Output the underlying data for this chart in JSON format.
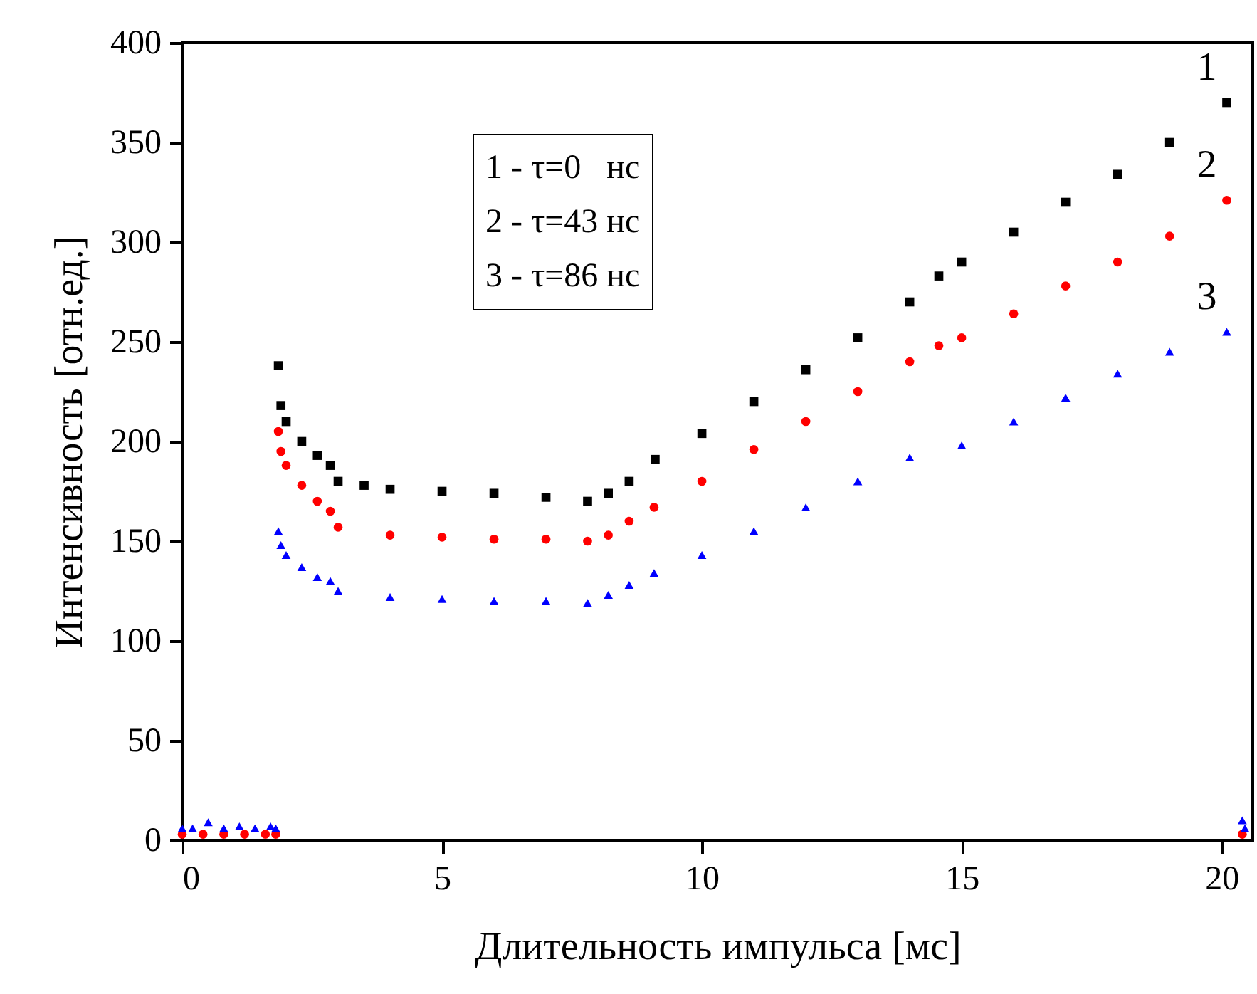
{
  "chart_data": {
    "type": "scatter",
    "xlabel": "Длительность импульса   [мс]",
    "ylabel": "Интенсивность    [отн.ед.]",
    "xlim": [
      0,
      20.6
    ],
    "ylim": [
      0,
      400
    ],
    "xticks": [
      0,
      5,
      10,
      15,
      20
    ],
    "yticks": [
      0,
      50,
      100,
      150,
      200,
      250,
      300,
      350,
      400
    ],
    "annotations": [
      "1 - τ=0   нс",
      "2 - τ=43 нс",
      "3 - τ=86 нс"
    ],
    "series": [
      {
        "name": "1",
        "color": "#000000",
        "marker": "square",
        "x": [
          1.85,
          1.9,
          2.0,
          2.3,
          2.6,
          2.85,
          3.0,
          3.5,
          4,
          5,
          6,
          7,
          7.8,
          8.2,
          8.6,
          9.1,
          10,
          11,
          12,
          13,
          14,
          14.56,
          15,
          16,
          17,
          18,
          19,
          20.1
        ],
        "values": [
          238,
          218,
          210,
          200,
          193,
          188,
          180,
          178,
          176,
          175,
          174,
          172,
          170,
          174,
          180,
          191,
          204,
          220,
          236,
          252,
          270,
          283,
          290,
          305,
          320,
          334,
          350,
          370
        ]
      },
      {
        "name": "2",
        "color": "#ff0000",
        "marker": "circle",
        "x": [
          0,
          0.4,
          0.8,
          1.2,
          1.6,
          1.8,
          1.85,
          1.9,
          2.0,
          2.3,
          2.6,
          2.85,
          3.0,
          4,
          5,
          6,
          7,
          7.8,
          8.2,
          8.6,
          9.08,
          10,
          11,
          12,
          13,
          14,
          14.56,
          15,
          16,
          17,
          18,
          19,
          20.1,
          20.4
        ],
        "values": [
          3,
          3,
          3,
          3,
          3,
          3,
          205,
          195,
          188,
          178,
          170,
          165,
          157,
          153,
          152,
          151,
          151,
          150,
          153,
          160,
          167,
          180,
          196,
          210,
          225,
          240,
          248,
          252,
          264,
          278,
          290,
          303,
          321,
          3
        ]
      },
      {
        "name": "3",
        "color": "#0000ff",
        "marker": "triangle",
        "x": [
          0,
          0.2,
          0.5,
          0.8,
          1.1,
          1.4,
          1.7,
          1.8,
          1.85,
          1.9,
          2.0,
          2.3,
          2.6,
          2.85,
          3.0,
          4,
          5,
          6,
          7,
          7.8,
          8.2,
          8.6,
          9.08,
          10,
          11,
          12,
          13,
          14,
          15,
          16,
          17,
          18,
          19,
          20.1,
          20.4,
          20.45
        ],
        "values": [
          6,
          6,
          9,
          6,
          7,
          6,
          7,
          6,
          155,
          148,
          143,
          137,
          132,
          130,
          125,
          122,
          121,
          120,
          120,
          119,
          123,
          128,
          134,
          143,
          155,
          167,
          180,
          192,
          198,
          210,
          222,
          234,
          245,
          255,
          10,
          6
        ]
      }
    ]
  }
}
